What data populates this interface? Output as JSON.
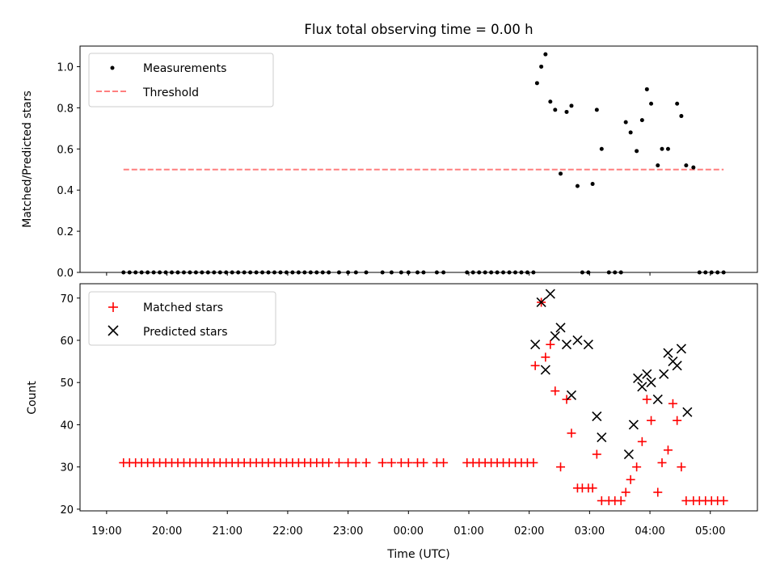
{
  "chart_data": [
    {
      "type": "scatter",
      "title": "Flux total observing time = 0.00 h",
      "xlabel": "",
      "ylabel": "Matched/Predicted stars",
      "ylim": [
        0,
        1.1
      ],
      "yticks": [
        "0.0",
        "0.2",
        "0.4",
        "0.6",
        "0.8",
        "1.0"
      ],
      "legend_position": "upper-left",
      "series": [
        {
          "name": "Measurements",
          "marker": "dot",
          "color": "#000000",
          "x": [
            19.28,
            19.38,
            19.48,
            19.58,
            19.68,
            19.78,
            19.88,
            19.98,
            20.08,
            20.18,
            20.28,
            20.38,
            20.48,
            20.58,
            20.68,
            20.78,
            20.88,
            20.98,
            21.08,
            21.18,
            21.28,
            21.38,
            21.48,
            21.58,
            21.68,
            21.78,
            21.88,
            21.98,
            22.08,
            22.18,
            22.28,
            22.38,
            22.48,
            22.58,
            22.68,
            22.85,
            23.0,
            23.13,
            23.3,
            23.57,
            23.72,
            23.88,
            24.0,
            24.15,
            24.25,
            24.47,
            24.58,
            24.97,
            25.07,
            25.17,
            25.27,
            25.37,
            25.47,
            25.57,
            25.67,
            25.77,
            25.87,
            25.97,
            26.07,
            26.13,
            26.2,
            26.27,
            26.35,
            26.43,
            26.52,
            26.62,
            26.7,
            26.8,
            26.88,
            26.98,
            27.05,
            27.12,
            27.2,
            27.32,
            27.42,
            27.52,
            27.6,
            27.68,
            27.78,
            27.87,
            27.95,
            28.02,
            28.13,
            28.2,
            28.3,
            28.45,
            28.52,
            28.6,
            28.72,
            28.82,
            28.92,
            29.02,
            29.12,
            29.22
          ],
          "values": [
            0,
            0,
            0,
            0,
            0,
            0,
            0,
            0,
            0,
            0,
            0,
            0,
            0,
            0,
            0,
            0,
            0,
            0,
            0,
            0,
            0,
            0,
            0,
            0,
            0,
            0,
            0,
            0,
            0,
            0,
            0,
            0,
            0,
            0,
            0,
            0,
            0,
            0,
            0,
            0,
            0,
            0,
            0,
            0,
            0,
            0,
            0,
            0,
            0,
            0,
            0,
            0,
            0,
            0,
            0,
            0,
            0,
            0,
            0,
            0.92,
            1.0,
            1.06,
            0.83,
            0.79,
            0.48,
            0.78,
            0.81,
            0.42,
            0,
            0,
            0.43,
            0.79,
            0.6,
            0,
            0,
            0,
            0.73,
            0.68,
            0.59,
            0.74,
            0.89,
            0.82,
            0.52,
            0.6,
            0.6,
            0.82,
            0.76,
            0.52,
            0.51,
            0,
            0,
            0,
            0,
            0
          ]
        },
        {
          "name": "Threshold",
          "line": "dashed",
          "color": "#ff7f7f",
          "x": [
            19.28,
            29.22
          ],
          "values": [
            0.5,
            0.5
          ]
        }
      ]
    },
    {
      "type": "scatter",
      "title": "",
      "xlabel": "Time (UTC)",
      "ylabel": "Count",
      "ylim": [
        19.6,
        73.4
      ],
      "yticks": [
        "20",
        "30",
        "40",
        "50",
        "60",
        "70"
      ],
      "xticks": [
        "19:00",
        "20:00",
        "21:00",
        "22:00",
        "23:00",
        "00:00",
        "01:00",
        "02:00",
        "03:00",
        "04:00",
        "05:00"
      ],
      "legend_position": "upper-left",
      "series": [
        {
          "name": "Matched stars",
          "marker": "plus",
          "color": "#ff0000",
          "x": [
            19.28,
            19.38,
            19.48,
            19.58,
            19.68,
            19.78,
            19.88,
            19.98,
            20.08,
            20.18,
            20.28,
            20.38,
            20.48,
            20.58,
            20.68,
            20.78,
            20.88,
            20.98,
            21.08,
            21.18,
            21.28,
            21.38,
            21.48,
            21.58,
            21.68,
            21.78,
            21.88,
            21.98,
            22.08,
            22.18,
            22.28,
            22.38,
            22.48,
            22.58,
            22.68,
            22.85,
            23.0,
            23.13,
            23.3,
            23.57,
            23.72,
            23.88,
            24.0,
            24.15,
            24.25,
            24.47,
            24.58,
            24.97,
            25.07,
            25.17,
            25.27,
            25.37,
            25.47,
            25.57,
            25.67,
            25.77,
            25.87,
            25.97,
            26.07,
            26.1,
            26.2,
            26.27,
            26.35,
            26.43,
            26.52,
            26.62,
            26.7,
            26.8,
            26.88,
            26.98,
            27.05,
            27.12,
            27.2,
            27.32,
            27.42,
            27.52,
            27.6,
            27.68,
            27.78,
            27.87,
            27.95,
            28.02,
            28.13,
            28.2,
            28.3,
            28.38,
            28.45,
            28.52,
            28.6,
            28.72,
            28.82,
            28.92,
            29.02,
            29.12,
            29.22
          ],
          "values": [
            31,
            31,
            31,
            31,
            31,
            31,
            31,
            31,
            31,
            31,
            31,
            31,
            31,
            31,
            31,
            31,
            31,
            31,
            31,
            31,
            31,
            31,
            31,
            31,
            31,
            31,
            31,
            31,
            31,
            31,
            31,
            31,
            31,
            31,
            31,
            31,
            31,
            31,
            31,
            31,
            31,
            31,
            31,
            31,
            31,
            31,
            31,
            31,
            31,
            31,
            31,
            31,
            31,
            31,
            31,
            31,
            31,
            31,
            31,
            54,
            69,
            56,
            59,
            48,
            30,
            46,
            38,
            25,
            25,
            25,
            25,
            33,
            22,
            22,
            22,
            22,
            24,
            27,
            30,
            36,
            46,
            41,
            24,
            31,
            34,
            45,
            41,
            30,
            22,
            22,
            22,
            22,
            22,
            22,
            22
          ]
        },
        {
          "name": "Predicted stars",
          "marker": "x",
          "color": "#000000",
          "x": [
            26.1,
            26.2,
            26.27,
            26.35,
            26.43,
            26.52,
            26.62,
            26.7,
            26.8,
            26.98,
            27.12,
            27.2,
            27.65,
            27.73,
            27.8,
            27.87,
            27.95,
            28.02,
            28.13,
            28.23,
            28.3,
            28.38,
            28.45,
            28.52,
            28.62
          ],
          "values": [
            59,
            69,
            53,
            71,
            61,
            63,
            59,
            47,
            60,
            59,
            42,
            37,
            33,
            40,
            51,
            49,
            52,
            50,
            46,
            52,
            57,
            55,
            54,
            58,
            43
          ]
        }
      ]
    }
  ]
}
